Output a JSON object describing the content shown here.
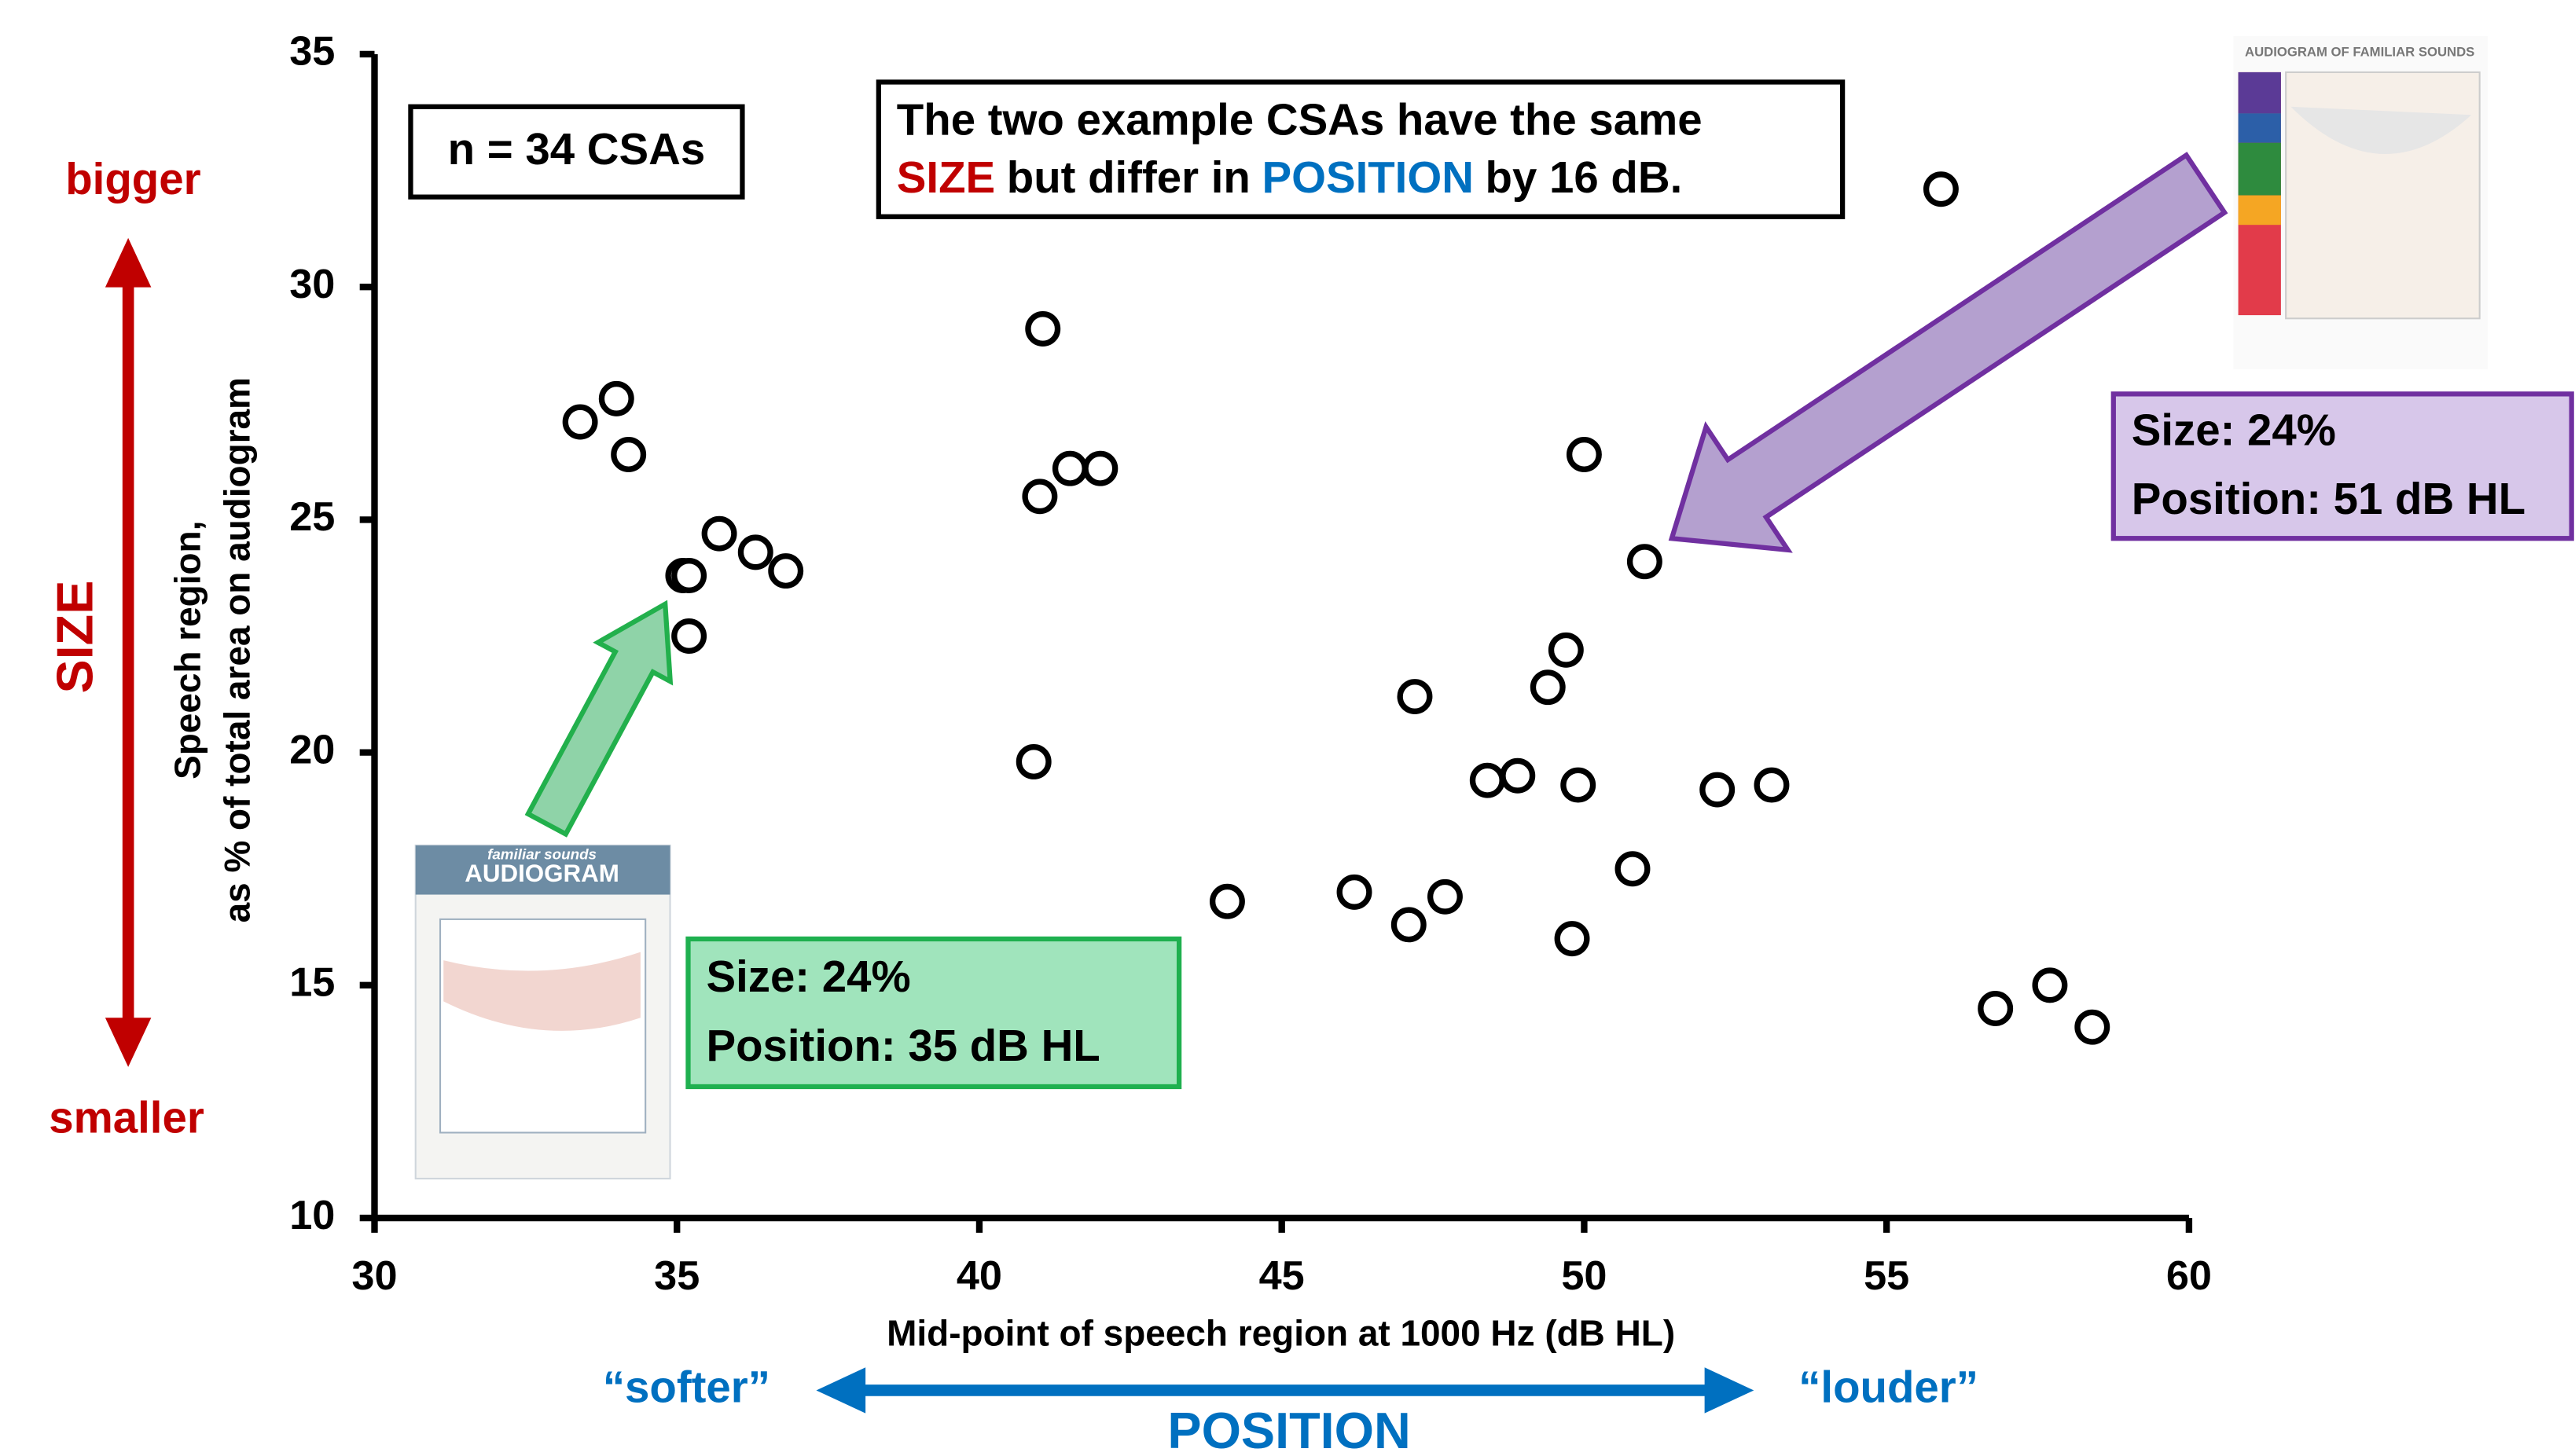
{
  "chart_data": {
    "type": "scatter",
    "x_label": "Mid-point of speech region at 1000 Hz (dB HL)",
    "y_label": [
      "Speech region,",
      "as % of total area on audiogram"
    ],
    "xlim": [
      30,
      60
    ],
    "xticks": [
      30,
      35,
      40,
      45,
      50,
      55,
      60
    ],
    "ylim": [
      10,
      35
    ],
    "yticks": [
      10,
      15,
      20,
      25,
      30,
      35
    ],
    "series": [
      {
        "color": "#000000",
        "x": [
          55.9,
          41.05,
          33.4,
          34.0,
          34.2,
          41.0,
          41.5,
          42.0,
          50.0,
          35.7,
          36.3,
          36.8,
          35.1,
          35.2,
          35.2,
          51.0,
          49.7,
          49.4,
          47.2,
          40.9,
          48.4,
          48.9,
          49.9,
          52.2,
          53.1,
          50.8,
          44.1,
          46.2,
          47.1,
          47.7,
          49.8,
          56.8,
          57.7,
          58.4
        ],
        "values": [
          32.1,
          29.1,
          27.1,
          27.6,
          26.4,
          25.5,
          26.1,
          26.1,
          26.4,
          24.7,
          24.3,
          23.9,
          23.8,
          23.8,
          22.5,
          24.1,
          22.2,
          21.4,
          21.2,
          19.8,
          19.4,
          19.5,
          19.3,
          19.2,
          19.3,
          17.5,
          16.8,
          17.0,
          16.3,
          16.9,
          16.0,
          14.5,
          15.0,
          14.1
        ]
      }
    ],
    "annotations": {
      "n_label": "n = 34 CSAs",
      "headline": [
        "The two example CSAs have the same",
        "SIZE",
        "but differ in",
        "POSITION",
        "by 16 dB."
      ],
      "example_left": [
        "Size: 24%",
        "Position: 35 dB HL"
      ],
      "example_right": [
        "Size: 24%",
        "Position: 51 dB HL"
      ],
      "size_axis": [
        "bigger",
        "SIZE",
        "smaller"
      ],
      "position_axis": [
        "“softer”",
        "POSITION",
        "“louder”"
      ],
      "thumb_left": [
        "familiar sounds",
        "AUDIOGRAM"
      ],
      "thumb_right": [
        "AUDIOGRAM OF FAMILIAR SOUNDS"
      ]
    }
  }
}
